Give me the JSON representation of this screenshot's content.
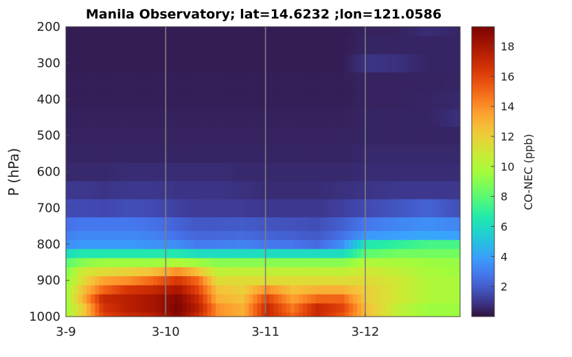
{
  "chart_data": {
    "type": "heatmap",
    "title": "Manila Observatory; lat=14.6232 ;lon=121.0586",
    "ylabel": "P (hPa)",
    "xlabel": "",
    "colorbar_label": "CO-NEC (ppb)",
    "colormap": "turbo",
    "y_ticks": [
      200,
      300,
      400,
      500,
      600,
      700,
      800,
      900,
      1000
    ],
    "ylim": [
      1000,
      200
    ],
    "x_ticks": [
      "3-9",
      "3-10",
      "3-11",
      "3-12"
    ],
    "x_range_days": [
      0,
      3.95
    ],
    "colorbar_ticks": [
      2,
      4,
      6,
      8,
      10,
      12,
      14,
      16,
      18
    ],
    "clim": [
      0,
      19.3
    ],
    "day_boundaries": [
      1,
      2,
      3
    ],
    "pressure_levels": [
      1000,
      975,
      950,
      925,
      900,
      875,
      850,
      825,
      800,
      775,
      750,
      700,
      650,
      600,
      550,
      500,
      450,
      400,
      350,
      300,
      250,
      200
    ],
    "level_edges": [
      1000,
      987.5,
      962.5,
      937.5,
      912.5,
      887.5,
      862.5,
      837.5,
      812.5,
      787.5,
      762.5,
      725,
      675,
      625,
      575,
      525,
      475,
      425,
      375,
      325,
      275,
      225,
      200
    ],
    "time_steps_per_day": 24,
    "time_steps": 95,
    "profile_keyframes": [
      {
        "t": 0.0,
        "values": [
          10,
          9.8,
          10,
          10,
          9.5,
          9,
          8,
          6,
          3.5,
          3,
          2.6,
          1.5,
          1,
          0.6,
          0.5,
          0.45,
          0.4,
          0.35,
          0.35,
          0.3,
          0.3,
          0.3
        ]
      },
      {
        "t": 0.15,
        "values": [
          12,
          12,
          13,
          12.5,
          11.5,
          11,
          9,
          6.5,
          3.8,
          3.3,
          2.8,
          1.5,
          1,
          0.6,
          0.5,
          0.45,
          0.4,
          0.35,
          0.35,
          0.3,
          0.3,
          0.3
        ]
      },
      {
        "t": 0.35,
        "values": [
          16,
          16.5,
          17,
          15,
          13.5,
          11.5,
          9.5,
          6.5,
          3.8,
          3.3,
          2.8,
          1.4,
          0.9,
          0.6,
          0.5,
          0.45,
          0.4,
          0.35,
          0.35,
          0.3,
          0.3,
          0.3
        ]
      },
      {
        "t": 0.6,
        "values": [
          17,
          17.5,
          17.5,
          16.5,
          14,
          12,
          9.5,
          6.5,
          3.8,
          3.3,
          2.8,
          1.6,
          1,
          0.7,
          0.5,
          0.45,
          0.4,
          0.35,
          0.35,
          0.3,
          0.3,
          0.3
        ]
      },
      {
        "t": 0.85,
        "values": [
          17.5,
          18,
          18,
          17,
          15,
          12.5,
          9.5,
          6.5,
          3.6,
          3.1,
          2.6,
          1.5,
          1,
          0.7,
          0.5,
          0.45,
          0.4,
          0.35,
          0.35,
          0.3,
          0.3,
          0.3
        ]
      },
      {
        "t": 1.1,
        "values": [
          19,
          19.2,
          19,
          18,
          16.5,
          14,
          10,
          6.5,
          3.4,
          2.6,
          2.2,
          1.2,
          0.9,
          0.7,
          0.5,
          0.45,
          0.4,
          0.35,
          0.35,
          0.3,
          0.3,
          0.3
        ]
      },
      {
        "t": 1.3,
        "values": [
          17,
          17.5,
          17,
          16,
          15,
          12.5,
          9.5,
          6,
          2.9,
          2.3,
          1.9,
          1.1,
          0.9,
          0.7,
          0.5,
          0.45,
          0.4,
          0.35,
          0.35,
          0.3,
          0.3,
          0.3
        ]
      },
      {
        "t": 1.5,
        "values": [
          14,
          14,
          13,
          12.5,
          11.5,
          10.5,
          9,
          6,
          3,
          2.3,
          1.9,
          1.1,
          0.9,
          0.7,
          0.5,
          0.45,
          0.4,
          0.35,
          0.35,
          0.3,
          0.3,
          0.3
        ]
      },
      {
        "t": 1.75,
        "values": [
          13,
          13,
          12.5,
          12,
          11.5,
          10.5,
          9,
          6,
          3.1,
          2.4,
          2,
          1.1,
          0.8,
          0.6,
          0.5,
          0.45,
          0.4,
          0.35,
          0.35,
          0.3,
          0.3,
          0.3
        ]
      },
      {
        "t": 2.0,
        "values": [
          17,
          17,
          16,
          14,
          11.5,
          10.5,
          9,
          6,
          2.8,
          2.2,
          1.8,
          1,
          0.7,
          0.6,
          0.5,
          0.45,
          0.4,
          0.35,
          0.35,
          0.3,
          0.3,
          0.3
        ]
      },
      {
        "t": 2.25,
        "values": [
          15,
          14.5,
          13.5,
          12.5,
          11.5,
          10.5,
          9,
          6,
          2.7,
          2.1,
          1.7,
          1,
          0.7,
          0.6,
          0.5,
          0.45,
          0.4,
          0.35,
          0.35,
          0.3,
          0.3,
          0.3
        ]
      },
      {
        "t": 2.5,
        "values": [
          17,
          17,
          15,
          13,
          11.5,
          10.5,
          9,
          6,
          2.4,
          1.9,
          1.6,
          1,
          0.7,
          0.6,
          0.5,
          0.45,
          0.4,
          0.35,
          0.35,
          0.3,
          0.3,
          0.3
        ]
      },
      {
        "t": 2.75,
        "values": [
          15.5,
          16,
          15,
          13,
          11.5,
          10.5,
          9,
          6,
          3.5,
          2.6,
          2.1,
          1.2,
          0.8,
          0.6,
          0.5,
          0.45,
          0.4,
          0.35,
          0.35,
          0.3,
          0.3,
          0.3
        ]
      },
      {
        "t": 3.0,
        "values": [
          12.5,
          12.5,
          12,
          12,
          11.5,
          11,
          10,
          8,
          6.5,
          3.8,
          2.8,
          1.5,
          0.9,
          0.7,
          0.6,
          0.5,
          0.5,
          0.45,
          0.45,
          0.9,
          0.5,
          0.45
        ]
      },
      {
        "t": 3.3,
        "values": [
          10.5,
          10.5,
          11,
          11,
          11,
          10.5,
          9.8,
          8.5,
          7,
          4,
          3.2,
          1.8,
          1,
          0.7,
          0.6,
          0.5,
          0.5,
          0.45,
          0.45,
          0.8,
          0.5,
          0.45
        ]
      },
      {
        "t": 3.6,
        "values": [
          9.5,
          9.5,
          10,
          10,
          10,
          9.8,
          9.5,
          8.5,
          7.5,
          4.2,
          3.5,
          2.2,
          1,
          0.7,
          0.6,
          0.5,
          0.5,
          0.5,
          0.45,
          0.5,
          0.5,
          0.7
        ]
      },
      {
        "t": 3.95,
        "values": [
          9.5,
          9.5,
          9.8,
          9.8,
          9.8,
          9.5,
          9.3,
          8.5,
          7.5,
          4,
          3.2,
          1.6,
          1,
          0.7,
          0.6,
          0.5,
          0.8,
          0.6,
          0.5,
          0.5,
          0.5,
          0.5
        ]
      }
    ]
  }
}
